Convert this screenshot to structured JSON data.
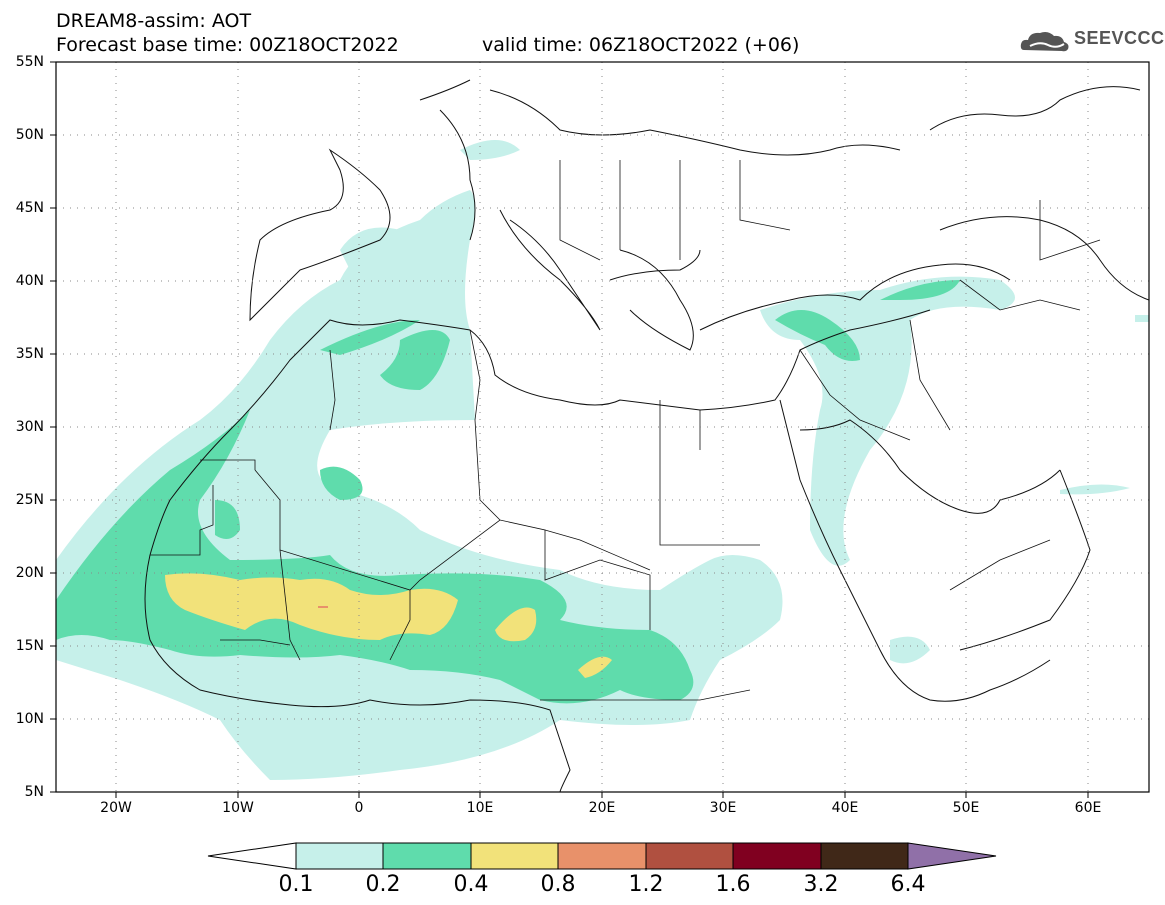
{
  "header": {
    "line1": "DREAM8-assim: AOT",
    "line2": "Forecast base time: 00Z18OCT2022",
    "valid": "valid time: 06Z18OCT2022 (+06)",
    "logo": "SEEVCCC"
  },
  "axes": {
    "lat_labels": [
      "55N",
      "50N",
      "45N",
      "40N",
      "35N",
      "30N",
      "25N",
      "20N",
      "15N",
      "10N",
      "5N"
    ],
    "lon_labels": [
      "20W",
      "10W",
      "0",
      "10E",
      "20E",
      "30E",
      "40E",
      "50E",
      "60E"
    ]
  },
  "colorbar": {
    "levels": [
      "0.1",
      "0.2",
      "0.4",
      "0.8",
      "1.2",
      "1.6",
      "3.2",
      "6.4"
    ],
    "colors": [
      "#c6f0ea",
      "#5fdcac",
      "#f2e27a",
      "#e8916a",
      "#b05040",
      "#800020",
      "#402818",
      "#9070a8"
    ]
  }
}
